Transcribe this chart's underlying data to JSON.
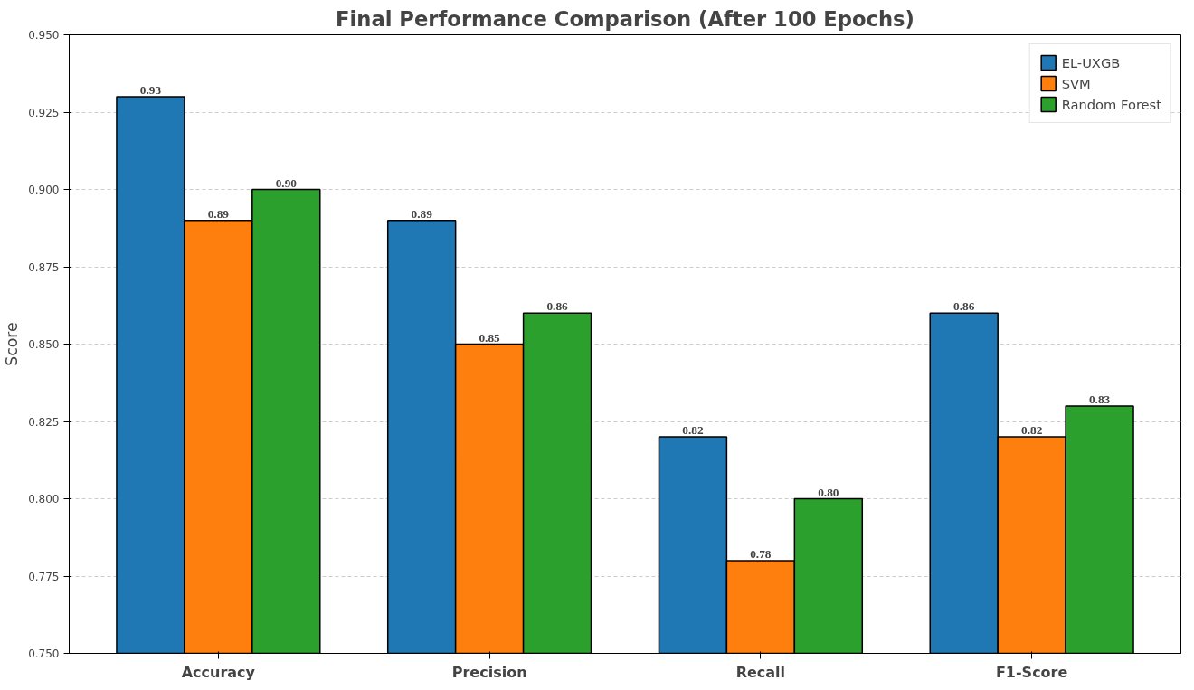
{
  "chart_data": {
    "type": "bar",
    "title": "Final Performance Comparison (After 100 Epochs)",
    "ylabel": "Score",
    "categories": [
      "Accuracy",
      "Precision",
      "Recall",
      "F1-Score"
    ],
    "series": [
      {
        "name": "EL-UXGB",
        "color": "#1f77b4",
        "values": [
          0.93,
          0.89,
          0.82,
          0.86
        ],
        "value_labels": [
          "0.93",
          "0.89",
          "0.82",
          "0.86"
        ]
      },
      {
        "name": "SVM",
        "color": "#ff7f0e",
        "values": [
          0.89,
          0.85,
          0.78,
          0.82
        ],
        "value_labels": [
          "0.89",
          "0.85",
          "0.78",
          "0.82"
        ]
      },
      {
        "name": "Random Forest",
        "color": "#2ca02c",
        "values": [
          0.9,
          0.86,
          0.8,
          0.83
        ],
        "value_labels": [
          "0.90",
          "0.86",
          "0.80",
          "0.83"
        ]
      }
    ],
    "ylim": [
      0.75,
      0.95
    ],
    "yticks": [
      {
        "value": 0.75,
        "label": "0.750"
      },
      {
        "value": 0.775,
        "label": "0.775"
      },
      {
        "value": 0.8,
        "label": "0.800"
      },
      {
        "value": 0.825,
        "label": "0.825"
      },
      {
        "value": 0.85,
        "label": "0.850"
      },
      {
        "value": 0.875,
        "label": "0.875"
      },
      {
        "value": 0.9,
        "label": "0.900"
      },
      {
        "value": 0.925,
        "label": "0.925"
      },
      {
        "value": 0.95,
        "label": "0.950"
      }
    ],
    "grid": "y",
    "legend": "top right"
  }
}
